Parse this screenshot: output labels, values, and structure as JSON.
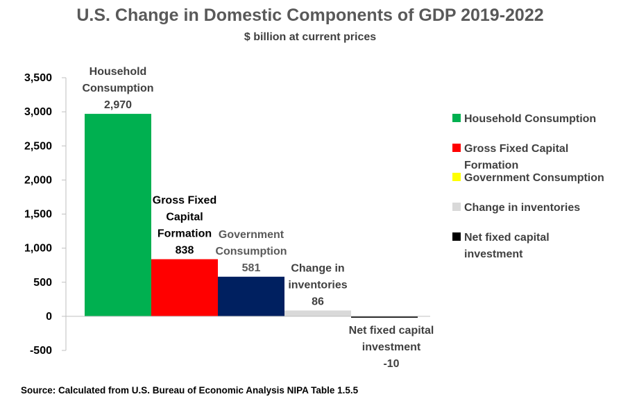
{
  "chart_data": {
    "type": "bar",
    "title": "U.S. Change in Domestic Components of GDP 2019-2022",
    "subtitle": "$ billion at current prices",
    "categories": [
      "Household Consumption",
      "Gross Fixed Capital Formation",
      "Government Consumption",
      "Change in inventories",
      "Net fixed capital investment"
    ],
    "values": [
      2970,
      838,
      581,
      86,
      -10
    ],
    "value_labels": [
      "2,970",
      "838",
      "581",
      "86",
      "-10"
    ],
    "category_labels": [
      [
        "Household",
        "Consumption"
      ],
      [
        "Gross Fixed",
        "Capital",
        "Formation"
      ],
      [
        "Government",
        "Consumption"
      ],
      [
        "Change in",
        "inventories"
      ],
      [
        "Net fixed capital",
        "investment"
      ]
    ],
    "colors": [
      "#00b050",
      "#ff0000",
      "#002060",
      "#d9d9d9",
      "#000000"
    ],
    "legend_colors": [
      "#00b050",
      "#ff0000",
      "#ffff00",
      "#d9d9d9",
      "#000000"
    ],
    "legend": {
      "position": "right",
      "items": [
        [
          "Household Consumption"
        ],
        [
          "Gross Fixed Capital",
          "Formation"
        ],
        [
          "Government Consumption"
        ],
        [
          "Change in inventories"
        ],
        [
          "Net fixed capital",
          "investment"
        ]
      ]
    },
    "ylim": [
      -500,
      3500
    ],
    "yticks": [
      -500,
      0,
      500,
      1000,
      1500,
      2000,
      2500,
      3000,
      3500
    ],
    "ytick_labels": [
      "-500",
      "0",
      "500",
      "1,000",
      "1,500",
      "2,000",
      "2,500",
      "3,000",
      "3,500"
    ],
    "xlabel": "",
    "ylabel": "",
    "grid": false,
    "source": "Source: Calculated from U.S. Bureau of Economic Analysis NIPA Table 1.5.5"
  }
}
